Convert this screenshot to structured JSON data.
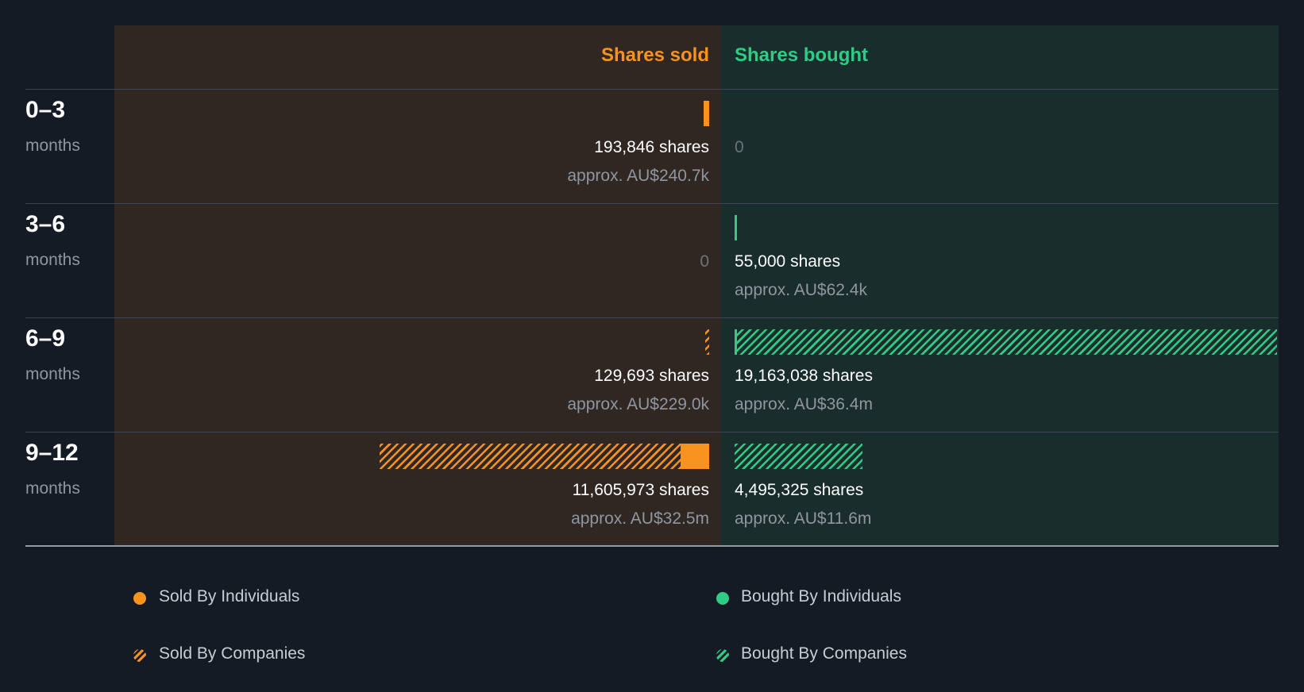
{
  "chart_data": {
    "type": "bar",
    "header": {
      "sold": "Shares sold",
      "bought": "Shares bought"
    },
    "unit_label": "months",
    "periods": [
      {
        "label": "0–3",
        "sold": {
          "individuals": 193846,
          "companies": 0,
          "shares_text": "193,846 shares",
          "value_text": "approx. AU$240.7k"
        },
        "bought": {
          "individuals": 0,
          "companies": 0,
          "shares_text": "0",
          "value_text": ""
        }
      },
      {
        "label": "3–6",
        "sold": {
          "individuals": 0,
          "companies": 0,
          "shares_text": "0",
          "value_text": ""
        },
        "bought": {
          "individuals": 55000,
          "companies": 0,
          "shares_text": "55,000 shares",
          "value_text": "approx. AU$62.4k"
        }
      },
      {
        "label": "6–9",
        "sold": {
          "individuals": 0,
          "companies": 129693,
          "shares_text": "129,693 shares",
          "value_text": "approx. AU$229.0k"
        },
        "bought": {
          "individuals": 150000,
          "companies": 19013038,
          "shares_text": "19,163,038 shares",
          "value_text": "approx. AU$36.4m"
        }
      },
      {
        "label": "9–12",
        "sold": {
          "individuals": 1000000,
          "companies": 10605973,
          "shares_text": "11,605,973 shares",
          "value_text": "approx. AU$32.5m"
        },
        "bought": {
          "individuals": 0,
          "companies": 4495325,
          "shares_text": "4,495,325 shares",
          "value_text": "approx. AU$11.6m"
        }
      }
    ],
    "scale_max": 19163038,
    "legend": [
      {
        "label": "Sold By Individuals",
        "key": "ind-sold"
      },
      {
        "label": "Bought By Individuals",
        "key": "ind-bought"
      },
      {
        "label": "Sold By Companies",
        "key": "co-sold"
      },
      {
        "label": "Bought By Companies",
        "key": "co-bought"
      }
    ],
    "colors": {
      "sold": "#f7931e",
      "bought": "#2ecc84",
      "background": "#151b24"
    }
  }
}
